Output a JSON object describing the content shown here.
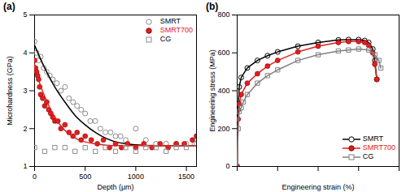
{
  "chart_data": [
    {
      "type": "scatter",
      "title": "(a)",
      "x_label": "Depth (μm)",
      "y_label": "Microhardness (GPa)",
      "xlim": [
        0,
        1600
      ],
      "ylim": [
        1,
        5
      ],
      "xticks": [
        0,
        500,
        1000,
        1500
      ],
      "yticks": [
        1,
        2,
        3,
        4,
        5
      ],
      "legend": "upper right",
      "series": [
        {
          "name": "SMRT",
          "color": "#8c8c8c",
          "marker": "circle-open",
          "x": [
            0,
            20,
            40,
            60,
            90,
            120,
            150,
            180,
            220,
            260,
            300,
            340,
            380,
            420,
            460,
            500,
            550,
            600,
            650,
            700,
            750,
            800,
            850,
            900,
            1000,
            1100,
            1200,
            1300,
            1400,
            1500,
            1580
          ],
          "values": [
            4.3,
            4.0,
            3.8,
            3.9,
            3.6,
            3.5,
            3.4,
            3.3,
            3.2,
            3.0,
            3.1,
            2.8,
            2.7,
            2.6,
            2.5,
            2.4,
            2.2,
            2.2,
            2.0,
            1.9,
            1.9,
            1.8,
            1.8,
            1.7,
            2.0,
            1.7,
            1.6,
            1.6,
            1.6,
            1.6,
            1.6
          ],
          "fit": {
            "color": "#000000",
            "x": [
              0,
              100,
              200,
              300,
              400,
              500,
              600,
              700,
              800,
              900,
              1000,
              1200,
              1400,
              1600
            ],
            "values": [
              4.2,
              3.6,
              3.1,
              2.7,
              2.35,
              2.1,
              1.9,
              1.75,
              1.65,
              1.6,
              1.57,
              1.55,
              1.55,
              1.55
            ]
          }
        },
        {
          "name": "SMRT700",
          "color": "#e02020",
          "marker": "circle",
          "x": [
            0,
            10,
            20,
            30,
            40,
            50,
            60,
            80,
            100,
            120,
            140,
            160,
            180,
            200,
            230,
            260,
            300,
            340,
            380,
            420,
            460,
            500,
            560,
            620,
            680,
            740,
            800,
            860,
            920,
            1000,
            1080,
            1160,
            1240,
            1320,
            1400,
            1480,
            1560,
            1600
          ],
          "values": [
            3.8,
            3.6,
            3.5,
            3.4,
            3.3,
            3.1,
            2.9,
            2.8,
            2.6,
            2.7,
            2.5,
            2.4,
            2.3,
            2.2,
            2.2,
            2.0,
            2.1,
            1.9,
            1.8,
            1.9,
            1.7,
            1.8,
            1.7,
            1.6,
            1.7,
            1.5,
            1.6,
            1.5,
            1.6,
            1.5,
            1.6,
            1.5,
            1.6,
            1.5,
            1.6,
            1.6,
            1.7,
            1.8
          ],
          "fit": {
            "color": "#e02020",
            "x": [
              0,
              50,
              100,
              150,
              200,
              300,
              400,
              500,
              600,
              800,
              1000,
              1200,
              1400,
              1600
            ],
            "values": [
              3.7,
              3.2,
              2.85,
              2.55,
              2.3,
              1.95,
              1.75,
              1.65,
              1.6,
              1.55,
              1.55,
              1.55,
              1.55,
              1.55
            ]
          }
        },
        {
          "name": "CG",
          "color": "#8c8c8c",
          "marker": "square-open",
          "x": [
            0,
            100,
            200,
            300,
            400,
            500,
            600,
            700,
            800,
            900,
            1000,
            1100,
            1200,
            1300,
            1400,
            1500,
            1600
          ],
          "values": [
            1.5,
            1.4,
            1.5,
            1.5,
            1.4,
            1.5,
            1.4,
            1.5,
            1.4,
            1.5,
            1.4,
            1.5,
            1.5,
            1.4,
            1.5,
            1.5,
            1.6
          ]
        }
      ]
    },
    {
      "type": "line",
      "title": "(b)",
      "x_label": "Engineering strain (%)",
      "y_label": "Engineering stress (MPa)",
      "xlim": [
        0,
        80
      ],
      "ylim": [
        0,
        800
      ],
      "xticks": [
        0,
        20,
        40,
        60,
        80
      ],
      "yticks": [
        0,
        200,
        400,
        600,
        800
      ],
      "tick_labels": "y",
      "legend": "lower right",
      "series": [
        {
          "name": "SMRT",
          "color": "#000000",
          "marker": "circle-open",
          "x": [
            0,
            0.5,
            1,
            2,
            5,
            10,
            15,
            20,
            30,
            40,
            50,
            55,
            60,
            63,
            65,
            67,
            68,
            69
          ],
          "values": [
            0,
            300,
            420,
            470,
            520,
            560,
            585,
            605,
            635,
            655,
            668,
            670,
            670,
            665,
            655,
            620,
            560,
            460
          ]
        },
        {
          "name": "SMRT700",
          "color": "#e02020",
          "marker": "circle",
          "x": [
            0,
            0.5,
            1,
            2,
            5,
            10,
            15,
            20,
            30,
            40,
            50,
            55,
            60,
            63,
            65,
            67,
            68,
            69
          ],
          "values": [
            0,
            250,
            330,
            380,
            440,
            490,
            530,
            560,
            605,
            635,
            655,
            660,
            660,
            655,
            640,
            600,
            540,
            460
          ]
        },
        {
          "name": "CG",
          "color": "#808080",
          "marker": "square-open",
          "x": [
            0,
            0.5,
            1,
            2,
            3,
            5,
            10,
            15,
            20,
            30,
            40,
            50,
            55,
            60,
            65,
            68,
            70,
            71
          ],
          "values": [
            0,
            200,
            290,
            310,
            340,
            380,
            440,
            480,
            510,
            560,
            590,
            610,
            615,
            620,
            615,
            590,
            560,
            520
          ]
        }
      ]
    }
  ]
}
